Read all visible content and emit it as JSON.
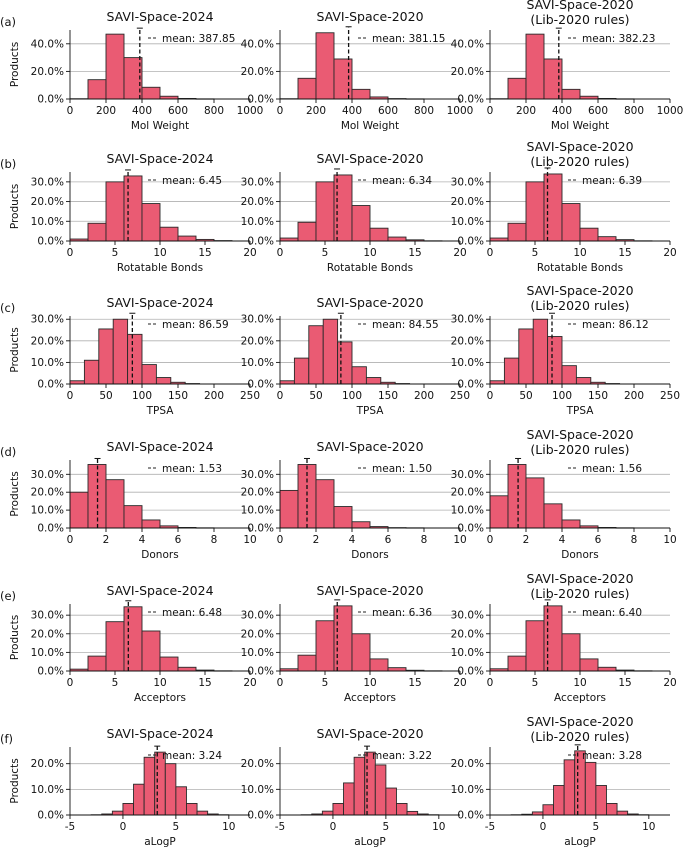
{
  "figure": {
    "ylabel": "Products",
    "rows": [
      {
        "label": "(a)",
        "xlabel": "Mol Weight",
        "xlim": [
          0,
          1000
        ],
        "xticks": [
          0,
          200,
          400,
          600,
          800,
          1000
        ],
        "ylim": [
          0,
          0.5
        ],
        "yticks": [
          0,
          0.2,
          0.4
        ],
        "ytick_labels": [
          "0.0%",
          "20.0%",
          "40.0%"
        ]
      },
      {
        "label": "(b)",
        "xlabel": "Rotatable Bonds",
        "xlim": [
          0,
          20
        ],
        "xticks": [
          0,
          5,
          10,
          15,
          20
        ],
        "ylim": [
          0,
          0.35
        ],
        "yticks": [
          0,
          0.1,
          0.2,
          0.3
        ],
        "ytick_labels": [
          "0.0%",
          "10.0%",
          "20.0%",
          "30.0%"
        ]
      },
      {
        "label": "(c)",
        "xlabel": "TPSA",
        "xlim": [
          0,
          250
        ],
        "xticks": [
          0,
          50,
          100,
          150,
          200,
          250
        ],
        "ylim": [
          0,
          0.315
        ],
        "yticks": [
          0,
          0.1,
          0.2,
          0.3
        ],
        "ytick_labels": [
          "0.0%",
          "10.0%",
          "20.0%",
          "30.0%"
        ]
      },
      {
        "label": "(d)",
        "xlabel": "Donors",
        "xlim": [
          0,
          10
        ],
        "xticks": [
          0,
          2,
          4,
          6,
          8,
          10
        ],
        "ylim": [
          0,
          0.38
        ],
        "yticks": [
          0,
          0.1,
          0.2,
          0.3
        ],
        "ytick_labels": [
          "0.0%",
          "10.0%",
          "20.0%",
          "30.0%"
        ]
      },
      {
        "label": "(e)",
        "xlabel": "Acceptors",
        "xlim": [
          0,
          20
        ],
        "xticks": [
          0,
          5,
          10,
          15,
          20
        ],
        "ylim": [
          0,
          0.36
        ],
        "yticks": [
          0,
          0.1,
          0.2,
          0.3
        ],
        "ytick_labels": [
          "0.0%",
          "10.0%",
          "20.0%",
          "30.0%"
        ]
      },
      {
        "label": "(f)",
        "xlabel": "aLogP",
        "xlim": [
          -5,
          12
        ],
        "xticks": [
          -5,
          0,
          5,
          10
        ],
        "ylim": [
          0,
          0.265
        ],
        "yticks": [
          0,
          0.1,
          0.2
        ],
        "ytick_labels": [
          "0.0%",
          "10.0%",
          "20.0%"
        ]
      }
    ],
    "columns": [
      {
        "title": [
          "SAVI-Space-2024"
        ]
      },
      {
        "title": [
          "SAVI-Space-2020"
        ]
      },
      {
        "title": [
          "SAVI-Space-2020",
          "(Lib-2020 rules)"
        ]
      }
    ]
  },
  "chart_data": [
    {
      "type": "bar",
      "row": 0,
      "col": 0,
      "title": "SAVI-Space-2024",
      "xlabel": "Mol Weight",
      "ylabel": "Products",
      "bin_edges": [
        0,
        100,
        200,
        300,
        400,
        500,
        600,
        700,
        800,
        900,
        1000
      ],
      "values": [
        0.002,
        0.14,
        0.47,
        0.3,
        0.085,
        0.02,
        0.004,
        0.001,
        0,
        0
      ],
      "mean": 387.85,
      "mean_label": "mean: 387.85"
    },
    {
      "type": "bar",
      "row": 0,
      "col": 1,
      "title": "SAVI-Space-2020",
      "xlabel": "Mol Weight",
      "ylabel": "Products",
      "bin_edges": [
        0,
        100,
        200,
        300,
        400,
        500,
        600,
        700,
        800,
        900,
        1000
      ],
      "values": [
        0.002,
        0.15,
        0.48,
        0.29,
        0.07,
        0.015,
        0.003,
        0.001,
        0,
        0
      ],
      "mean": 381.15,
      "mean_label": "mean: 381.15"
    },
    {
      "type": "bar",
      "row": 0,
      "col": 2,
      "title": "SAVI-Space-2020 (Lib-2020 rules)",
      "xlabel": "Mol Weight",
      "ylabel": "Products",
      "bin_edges": [
        0,
        100,
        200,
        300,
        400,
        500,
        600,
        700,
        800,
        900,
        1000
      ],
      "values": [
        0.002,
        0.15,
        0.47,
        0.29,
        0.07,
        0.02,
        0.004,
        0.001,
        0,
        0
      ],
      "mean": 382.23,
      "mean_label": "mean: 382.23"
    },
    {
      "type": "bar",
      "row": 1,
      "col": 0,
      "title": "SAVI-Space-2024",
      "xlabel": "Rotatable Bonds",
      "ylabel": "Products",
      "bin_edges": [
        0,
        2,
        4,
        6,
        8,
        10,
        12,
        14,
        16,
        18,
        20
      ],
      "values": [
        0.01,
        0.09,
        0.3,
        0.33,
        0.19,
        0.07,
        0.025,
        0.008,
        0.002,
        0
      ],
      "mean": 6.45,
      "mean_label": "mean: 6.45"
    },
    {
      "type": "bar",
      "row": 1,
      "col": 1,
      "title": "SAVI-Space-2020",
      "xlabel": "Rotatable Bonds",
      "ylabel": "Products",
      "bin_edges": [
        0,
        2,
        4,
        6,
        8,
        10,
        12,
        14,
        16,
        18,
        20
      ],
      "values": [
        0.015,
        0.095,
        0.3,
        0.335,
        0.18,
        0.065,
        0.02,
        0.006,
        0.001,
        0
      ],
      "mean": 6.34,
      "mean_label": "mean: 6.34"
    },
    {
      "type": "bar",
      "row": 1,
      "col": 2,
      "title": "SAVI-Space-2020 (Lib-2020 rules)",
      "xlabel": "Rotatable Bonds",
      "ylabel": "Products",
      "bin_edges": [
        0,
        2,
        4,
        6,
        8,
        10,
        12,
        14,
        16,
        18,
        20
      ],
      "values": [
        0.015,
        0.09,
        0.3,
        0.34,
        0.19,
        0.065,
        0.022,
        0.007,
        0.001,
        0
      ],
      "mean": 6.39,
      "mean_label": "mean: 6.39"
    },
    {
      "type": "bar",
      "row": 2,
      "col": 0,
      "title": "SAVI-Space-2024",
      "xlabel": "TPSA",
      "ylabel": "Products",
      "bin_edges": [
        0,
        20,
        40,
        60,
        80,
        100,
        120,
        140,
        160,
        180,
        200,
        220,
        240
      ],
      "values": [
        0.015,
        0.11,
        0.255,
        0.3,
        0.23,
        0.09,
        0.03,
        0.008,
        0.002,
        0,
        0,
        0
      ],
      "mean": 86.59,
      "mean_label": "mean: 86.59"
    },
    {
      "type": "bar",
      "row": 2,
      "col": 1,
      "title": "SAVI-Space-2020",
      "xlabel": "TPSA",
      "ylabel": "Products",
      "bin_edges": [
        0,
        20,
        40,
        60,
        80,
        100,
        120,
        140,
        160,
        180,
        200,
        220,
        240
      ],
      "values": [
        0.015,
        0.12,
        0.27,
        0.3,
        0.195,
        0.08,
        0.03,
        0.008,
        0.002,
        0,
        0,
        0
      ],
      "mean": 84.55,
      "mean_label": "mean: 84.55"
    },
    {
      "type": "bar",
      "row": 2,
      "col": 2,
      "title": "SAVI-Space-2020 (Lib-2020 rules)",
      "xlabel": "TPSA",
      "ylabel": "Products",
      "bin_edges": [
        0,
        20,
        40,
        60,
        80,
        100,
        120,
        140,
        160,
        180,
        200,
        220,
        240
      ],
      "values": [
        0.015,
        0.12,
        0.255,
        0.3,
        0.22,
        0.085,
        0.03,
        0.008,
        0.002,
        0,
        0,
        0
      ],
      "mean": 86.12,
      "mean_label": "mean: 86.12"
    },
    {
      "type": "bar",
      "row": 3,
      "col": 0,
      "title": "SAVI-Space-2024",
      "xlabel": "Donors",
      "ylabel": "Products",
      "bin_edges": [
        0,
        1,
        2,
        3,
        4,
        5,
        6,
        7,
        8,
        9,
        10
      ],
      "values": [
        0.2,
        0.355,
        0.27,
        0.125,
        0.045,
        0.012,
        0.003,
        0.001,
        0,
        0
      ],
      "mean": 1.53,
      "mean_label": "mean: 1.53"
    },
    {
      "type": "bar",
      "row": 3,
      "col": 1,
      "title": "SAVI-Space-2020",
      "xlabel": "Donors",
      "ylabel": "Products",
      "bin_edges": [
        0,
        1,
        2,
        3,
        4,
        5,
        6,
        7,
        8,
        9,
        10
      ],
      "values": [
        0.21,
        0.355,
        0.27,
        0.12,
        0.035,
        0.008,
        0.002,
        0.001,
        0,
        0
      ],
      "mean": 1.5,
      "mean_label": "mean: 1.50"
    },
    {
      "type": "bar",
      "row": 3,
      "col": 2,
      "title": "SAVI-Space-2020 (Lib-2020 rules)",
      "xlabel": "Donors",
      "ylabel": "Products",
      "bin_edges": [
        0,
        1,
        2,
        3,
        4,
        5,
        6,
        7,
        8,
        9,
        10
      ],
      "values": [
        0.18,
        0.355,
        0.28,
        0.135,
        0.045,
        0.012,
        0.003,
        0.001,
        0,
        0
      ],
      "mean": 1.56,
      "mean_label": "mean: 1.56"
    },
    {
      "type": "bar",
      "row": 4,
      "col": 0,
      "title": "SAVI-Space-2024",
      "xlabel": "Acceptors",
      "ylabel": "Products",
      "bin_edges": [
        0,
        2,
        4,
        6,
        8,
        10,
        12,
        14,
        16,
        18,
        20
      ],
      "values": [
        0.01,
        0.08,
        0.265,
        0.345,
        0.215,
        0.075,
        0.02,
        0.005,
        0.001,
        0
      ],
      "mean": 6.48,
      "mean_label": "mean: 6.48"
    },
    {
      "type": "bar",
      "row": 4,
      "col": 1,
      "title": "SAVI-Space-2020",
      "xlabel": "Acceptors",
      "ylabel": "Products",
      "bin_edges": [
        0,
        2,
        4,
        6,
        8,
        10,
        12,
        14,
        16,
        18,
        20
      ],
      "values": [
        0.012,
        0.085,
        0.27,
        0.35,
        0.2,
        0.065,
        0.018,
        0.004,
        0.001,
        0
      ],
      "mean": 6.36,
      "mean_label": "mean: 6.36"
    },
    {
      "type": "bar",
      "row": 4,
      "col": 2,
      "title": "SAVI-Space-2020 (Lib-2020 rules)",
      "xlabel": "Acceptors",
      "ylabel": "Products",
      "bin_edges": [
        0,
        2,
        4,
        6,
        8,
        10,
        12,
        14,
        16,
        18,
        20
      ],
      "values": [
        0.012,
        0.08,
        0.27,
        0.35,
        0.2,
        0.065,
        0.02,
        0.005,
        0.001,
        0
      ],
      "mean": 6.4,
      "mean_label": "mean: 6.40"
    },
    {
      "type": "bar",
      "row": 5,
      "col": 0,
      "title": "SAVI-Space-2024",
      "xlabel": "aLogP",
      "ylabel": "Products",
      "bin_edges": [
        -3,
        -2,
        -1,
        0,
        1,
        2,
        3,
        4,
        5,
        6,
        7,
        8,
        9,
        10
      ],
      "values": [
        0.001,
        0.004,
        0.015,
        0.045,
        0.12,
        0.225,
        0.245,
        0.2,
        0.11,
        0.045,
        0.015,
        0.004,
        0.001
      ],
      "mean": 3.24,
      "mean_label": "mean: 3.24"
    },
    {
      "type": "bar",
      "row": 5,
      "col": 1,
      "title": "SAVI-Space-2020",
      "xlabel": "aLogP",
      "ylabel": "Products",
      "bin_edges": [
        -3,
        -2,
        -1,
        0,
        1,
        2,
        3,
        4,
        5,
        6,
        7,
        8,
        9,
        10
      ],
      "values": [
        0.001,
        0.004,
        0.015,
        0.045,
        0.125,
        0.225,
        0.245,
        0.195,
        0.105,
        0.045,
        0.014,
        0.004,
        0.001
      ],
      "mean": 3.22,
      "mean_label": "mean: 3.22"
    },
    {
      "type": "bar",
      "row": 5,
      "col": 2,
      "title": "SAVI-Space-2020 (Lib-2020 rules)",
      "xlabel": "aLogP",
      "ylabel": "Products",
      "bin_edges": [
        -3,
        -2,
        -1,
        0,
        1,
        2,
        3,
        4,
        5,
        6,
        7,
        8,
        9,
        10
      ],
      "values": [
        0.001,
        0.003,
        0.012,
        0.04,
        0.115,
        0.215,
        0.25,
        0.205,
        0.115,
        0.045,
        0.015,
        0.004,
        0.001
      ],
      "mean": 3.28,
      "mean_label": "mean: 3.28"
    }
  ]
}
